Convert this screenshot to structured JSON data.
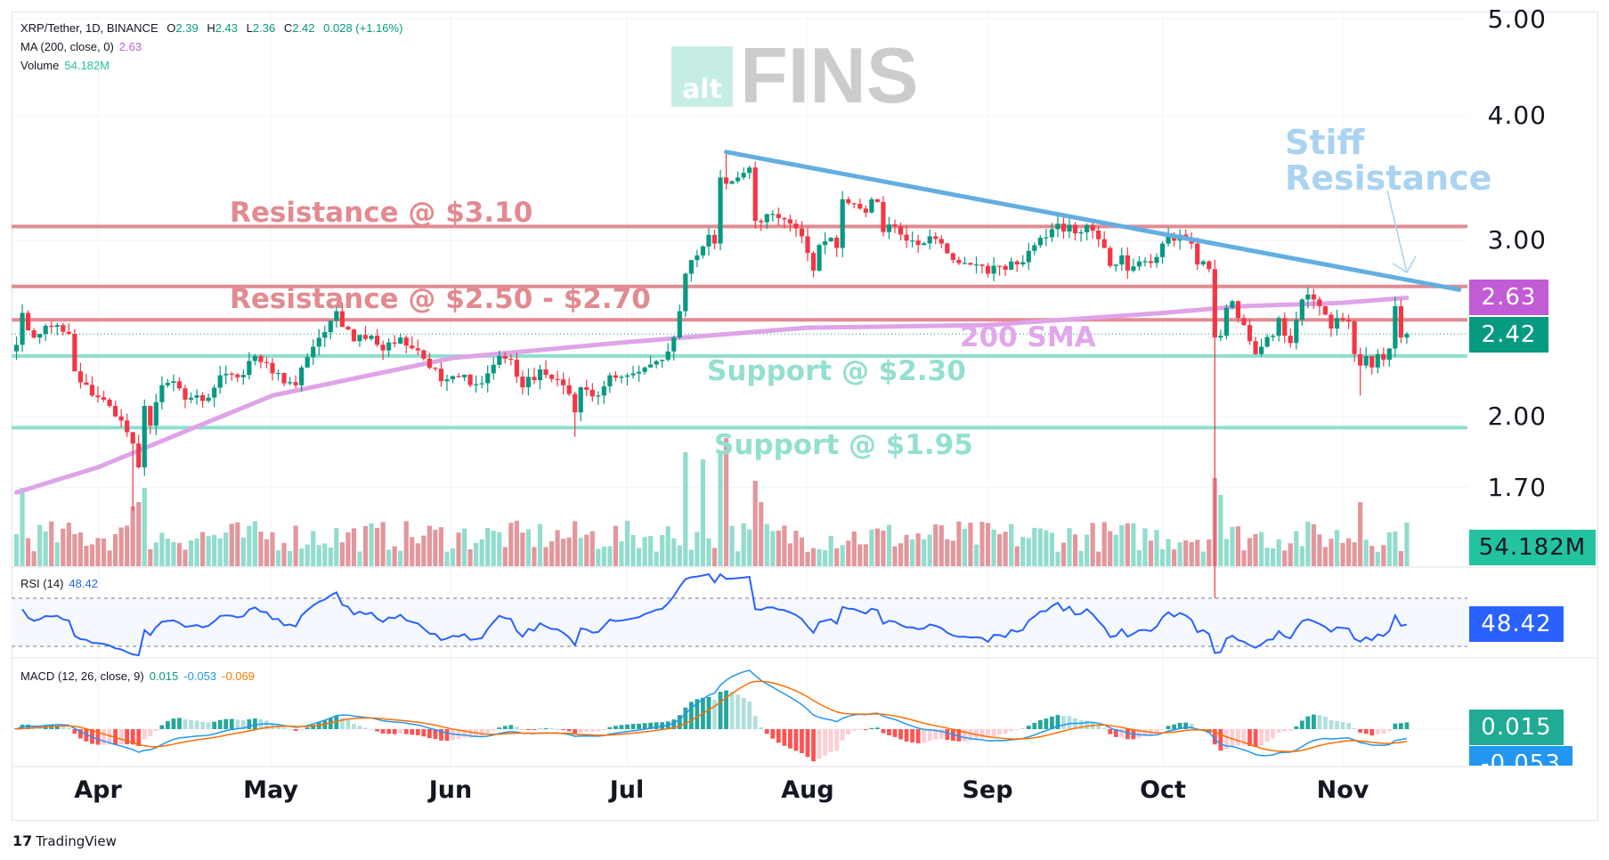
{
  "legend": {
    "symbol": "XRP/Tether, 1D, BINANCE",
    "o_label": "O",
    "o": "2.39",
    "h_label": "H",
    "h": "2.43",
    "l_label": "L",
    "l": "2.36",
    "c_label": "C",
    "c": "2.42",
    "change": "0.028 (+1.16%)",
    "ma_label": "MA (200, close, 0)",
    "ma_value": "2.63",
    "volume_label": "Volume",
    "volume_value": "54.182M",
    "rsi_label": "RSI (14)",
    "rsi_value": "48.42",
    "macd_label": "MACD (12, 26, close, 9)",
    "macd_hist": "0.015",
    "macd_line": "-0.053",
    "macd_signal": "-0.069"
  },
  "price_axis": [
    "5.00",
    "4.00",
    "3.00",
    "2.00",
    "1.70"
  ],
  "badges": {
    "ma": "2.63",
    "price": "2.42",
    "volume": "54.182M",
    "rsi": "48.42",
    "macd_hist": "0.015",
    "macd_line": "-0.053"
  },
  "time_axis": [
    "Apr",
    "May",
    "Jun",
    "Jul",
    "Aug",
    "Sep",
    "Oct",
    "Nov"
  ],
  "annotations": {
    "res1": "Resistance @ $3.10",
    "res2": "Resistance @ $2.50 - $2.70",
    "sma": "200 SMA",
    "sup1": "Support @ $2.30",
    "sup2": "Support @ $1.95",
    "stiff1": "Stiff",
    "stiff2": "Resistance"
  },
  "logo": {
    "alt": "alt",
    "fins": "FINS"
  },
  "footer": {
    "brand": "TradingView",
    "mark": "17"
  },
  "colors": {
    "up": "#089981",
    "down": "#f23645",
    "resistance": "#e08c92",
    "support": "#8fdecf",
    "sma": "#dfa3e8",
    "trend": "#63aee0",
    "rsi": "#2962ff",
    "macd": "#2196f3",
    "signal": "#ff6d00"
  },
  "chart_data": {
    "type": "candlestick",
    "title": "XRP/Tether, 1D, BINANCE",
    "scale": "log",
    "ylim": [
      1.6,
      5.0
    ],
    "price_ticks": [
      5.0,
      4.0,
      3.0,
      2.0,
      1.7
    ],
    "horizontal_levels": [
      {
        "price": 3.1,
        "kind": "resistance"
      },
      {
        "price": 2.7,
        "kind": "resistance"
      },
      {
        "price": 2.5,
        "kind": "resistance"
      },
      {
        "price": 2.3,
        "kind": "support"
      },
      {
        "price": 1.95,
        "kind": "support"
      }
    ],
    "last_price": 2.42,
    "trendline": [
      [
        "Jul",
        18,
        3.68
      ],
      [
        "Nov",
        21,
        2.68
      ]
    ],
    "close_anchors": [
      [
        "Mar",
        18,
        2.36
      ],
      [
        "Mar",
        19,
        2.54
      ],
      [
        "Mar",
        20,
        2.44
      ],
      [
        "Mar",
        22,
        2.42
      ],
      [
        "Mar",
        24,
        2.46
      ],
      [
        "Mar",
        25,
        2.47
      ],
      [
        "Mar",
        27,
        2.42
      ],
      [
        "Mar",
        28,
        2.22
      ],
      [
        "Mar",
        31,
        2.1
      ],
      [
        "Apr",
        2,
        2.08
      ],
      [
        "Apr",
        3,
        2.05
      ],
      [
        "Apr",
        6,
        1.93
      ],
      [
        "Apr",
        7,
        1.88
      ],
      [
        "Apr",
        8,
        1.78
      ],
      [
        "Apr",
        9,
        2.05
      ],
      [
        "Apr",
        10,
        1.96
      ],
      [
        "Apr",
        12,
        2.15
      ],
      [
        "Apr",
        14,
        2.17
      ],
      [
        "Apr",
        16,
        2.08
      ],
      [
        "Apr",
        20,
        2.09
      ],
      [
        "Apr",
        22,
        2.2
      ],
      [
        "Apr",
        25,
        2.19
      ],
      [
        "Apr",
        28,
        2.3
      ],
      [
        "May",
        1,
        2.21
      ],
      [
        "May",
        5,
        2.15
      ],
      [
        "May",
        8,
        2.35
      ],
      [
        "May",
        10,
        2.43
      ],
      [
        "May",
        12,
        2.55
      ],
      [
        "May",
        13,
        2.46
      ],
      [
        "May",
        15,
        2.38
      ],
      [
        "May",
        18,
        2.41
      ],
      [
        "May",
        20,
        2.33
      ],
      [
        "May",
        23,
        2.4
      ],
      [
        "May",
        26,
        2.33
      ],
      [
        "May",
        30,
        2.17
      ],
      [
        "Jun",
        2,
        2.19
      ],
      [
        "Jun",
        6,
        2.16
      ],
      [
        "Jun",
        9,
        2.3
      ],
      [
        "Jun",
        11,
        2.28
      ],
      [
        "Jun",
        13,
        2.14
      ],
      [
        "Jun",
        16,
        2.23
      ],
      [
        "Jun",
        20,
        2.15
      ],
      [
        "Jun",
        22,
        2.02
      ],
      [
        "Jun",
        23,
        2.14
      ],
      [
        "Jun",
        26,
        2.1
      ],
      [
        "Jun",
        28,
        2.2
      ],
      [
        "Jul",
        1,
        2.2
      ],
      [
        "Jul",
        4,
        2.24
      ],
      [
        "Jul",
        7,
        2.28
      ],
      [
        "Jul",
        9,
        2.4
      ],
      [
        "Jul",
        10,
        2.55
      ],
      [
        "Jul",
        11,
        2.78
      ],
      [
        "Jul",
        13,
        2.9
      ],
      [
        "Jul",
        14,
        2.96
      ],
      [
        "Jul",
        15,
        3.04
      ],
      [
        "Jul",
        16,
        2.98
      ],
      [
        "Jul",
        17,
        3.47
      ],
      [
        "Jul",
        18,
        3.42
      ],
      [
        "Jul",
        19,
        3.44
      ],
      [
        "Jul",
        20,
        3.47
      ],
      [
        "Jul",
        22,
        3.55
      ],
      [
        "Jul",
        23,
        3.14
      ],
      [
        "Jul",
        24,
        3.13
      ],
      [
        "Jul",
        26,
        3.19
      ],
      [
        "Jul",
        27,
        3.16
      ],
      [
        "Jul",
        29,
        3.12
      ],
      [
        "Jul",
        31,
        3.03
      ],
      [
        "Aug",
        2,
        2.8
      ],
      [
        "Aug",
        3,
        2.97
      ],
      [
        "Aug",
        5,
        3.02
      ],
      [
        "Aug",
        6,
        2.95
      ],
      [
        "Aug",
        7,
        3.3
      ],
      [
        "Aug",
        8,
        3.27
      ],
      [
        "Aug",
        10,
        3.23
      ],
      [
        "Aug",
        11,
        3.2
      ],
      [
        "Aug",
        12,
        3.3
      ],
      [
        "Aug",
        13,
        3.28
      ],
      [
        "Aug",
        14,
        3.06
      ],
      [
        "Aug",
        16,
        3.1
      ],
      [
        "Aug",
        18,
        3.0
      ],
      [
        "Aug",
        20,
        2.97
      ],
      [
        "Aug",
        22,
        3.03
      ],
      [
        "Aug",
        24,
        2.98
      ],
      [
        "Aug",
        26,
        2.87
      ],
      [
        "Aug",
        28,
        2.85
      ],
      [
        "Aug",
        30,
        2.84
      ],
      [
        "Sep",
        1,
        2.78
      ],
      [
        "Sep",
        3,
        2.83
      ],
      [
        "Sep",
        6,
        2.84
      ],
      [
        "Sep",
        8,
        2.93
      ],
      [
        "Sep",
        10,
        3.02
      ],
      [
        "Sep",
        12,
        3.08
      ],
      [
        "Sep",
        13,
        3.12
      ],
      [
        "Sep",
        16,
        3.05
      ],
      [
        "Sep",
        18,
        3.11
      ],
      [
        "Sep",
        20,
        3.01
      ],
      [
        "Sep",
        21,
        2.95
      ],
      [
        "Sep",
        22,
        2.83
      ],
      [
        "Sep",
        24,
        2.9
      ],
      [
        "Sep",
        25,
        2.8
      ],
      [
        "Sep",
        27,
        2.86
      ],
      [
        "Sep",
        29,
        2.85
      ],
      [
        "Oct",
        1,
        2.98
      ],
      [
        "Oct",
        2,
        3.04
      ],
      [
        "Oct",
        3,
        3.0
      ],
      [
        "Oct",
        5,
        3.02
      ],
      [
        "Oct",
        6,
        2.98
      ],
      [
        "Oct",
        7,
        2.84
      ],
      [
        "Oct",
        8,
        2.86
      ],
      [
        "Oct",
        9,
        2.81
      ],
      [
        "Oct",
        10,
        2.4
      ],
      [
        "Oct",
        11,
        2.41
      ],
      [
        "Oct",
        12,
        2.57
      ],
      [
        "Oct",
        13,
        2.61
      ],
      [
        "Oct",
        14,
        2.51
      ],
      [
        "Oct",
        15,
        2.47
      ],
      [
        "Oct",
        16,
        2.38
      ],
      [
        "Oct",
        17,
        2.31
      ],
      [
        "Oct",
        18,
        2.35
      ],
      [
        "Oct",
        20,
        2.41
      ],
      [
        "Oct",
        21,
        2.51
      ],
      [
        "Oct",
        22,
        2.41
      ],
      [
        "Oct",
        23,
        2.37
      ],
      [
        "Oct",
        24,
        2.5
      ],
      [
        "Oct",
        25,
        2.62
      ],
      [
        "Oct",
        26,
        2.65
      ],
      [
        "Oct",
        27,
        2.62
      ],
      [
        "Oct",
        28,
        2.58
      ],
      [
        "Oct",
        29,
        2.53
      ],
      [
        "Oct",
        30,
        2.45
      ],
      [
        "Oct",
        31,
        2.51
      ],
      [
        "Nov",
        1,
        2.5
      ],
      [
        "Nov",
        2,
        2.49
      ],
      [
        "Nov",
        3,
        2.31
      ],
      [
        "Nov",
        4,
        2.25
      ],
      [
        "Nov",
        5,
        2.3
      ],
      [
        "Nov",
        6,
        2.24
      ],
      [
        "Nov",
        7,
        2.31
      ],
      [
        "Nov",
        8,
        2.28
      ],
      [
        "Nov",
        9,
        2.34
      ],
      [
        "Nov",
        10,
        2.58
      ],
      [
        "Nov",
        11,
        2.4
      ],
      [
        "Nov",
        12,
        2.42
      ]
    ],
    "wick_extremes": [
      [
        "Apr",
        7,
        "low",
        1.61
      ],
      [
        "Jul",
        18,
        "high",
        3.66
      ],
      [
        "Oct",
        10,
        "low",
        1.25
      ],
      [
        "Oct",
        10,
        "high",
        2.87
      ],
      [
        "Jun",
        22,
        "low",
        1.91
      ],
      [
        "Nov",
        4,
        "low",
        2.1
      ]
    ],
    "sma200_anchors": [
      [
        "Mar",
        18,
        1.68
      ],
      [
        "Apr",
        1,
        1.78
      ],
      [
        "May",
        1,
        2.1
      ],
      [
        "Jun",
        1,
        2.29
      ],
      [
        "Jul",
        1,
        2.375
      ],
      [
        "Aug",
        1,
        2.455
      ],
      [
        "Sep",
        1,
        2.47
      ],
      [
        "Oct",
        1,
        2.54
      ],
      [
        "Oct",
        15,
        2.58
      ],
      [
        "Nov",
        1,
        2.6
      ],
      [
        "Nov",
        12,
        2.63
      ]
    ],
    "volume_relative_spikes": [
      [
        "Mar",
        19,
        0.55
      ],
      [
        "Apr",
        7,
        0.42
      ],
      [
        "Apr",
        8,
        0.45
      ],
      [
        "Apr",
        9,
        0.55
      ],
      [
        "Jul",
        11,
        0.8
      ],
      [
        "Jul",
        14,
        0.75
      ],
      [
        "Jul",
        17,
        0.8
      ],
      [
        "Jul",
        18,
        0.9
      ],
      [
        "Jul",
        23,
        0.6
      ],
      [
        "Jul",
        24,
        0.45
      ],
      [
        "Oct",
        10,
        0.62
      ],
      [
        "Oct",
        11,
        0.5
      ],
      [
        "Nov",
        4,
        0.45
      ]
    ],
    "rsi_levels": [
      70,
      30
    ],
    "last_volume": "54.182M"
  }
}
